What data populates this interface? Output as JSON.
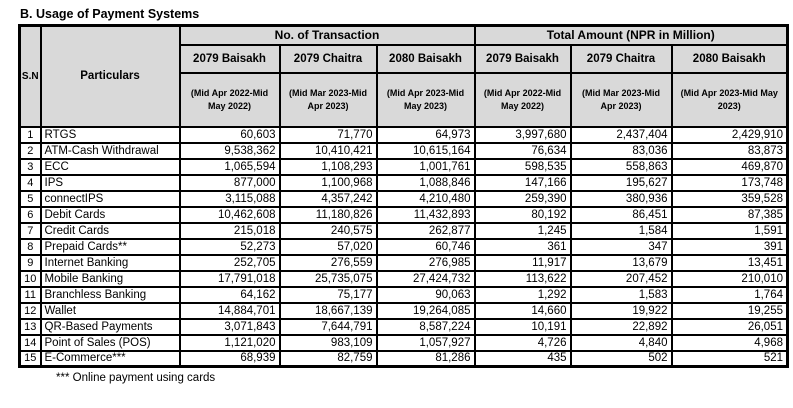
{
  "title": "B. Usage of Payment Systems",
  "footnote": "*** Online payment using cards",
  "colors": {
    "header_bg": "#d9d9d9",
    "border": "#000000",
    "text": "#000000",
    "page_bg": "#ffffff"
  },
  "table": {
    "sn_header": "S.N",
    "particulars_header": "Particulars",
    "group_headers": [
      "No. of Transaction",
      "Total Amount (NPR in Million)"
    ],
    "period_headers": [
      "2079 Baisakh",
      "2079 Chaitra",
      "2080 Baisakh",
      "2079 Baisakh",
      "2079 Chaitra",
      "2080 Baisakh"
    ],
    "date_range_headers": [
      "(Mid Apr 2022-Mid May 2022)",
      "(Mid Mar 2023-Mid Apr 2023)",
      "(Mid Apr 2023-Mid May 2023)",
      "(Mid Apr 2022-Mid May 2022)",
      "(Mid Mar 2023-Mid Apr 2023)",
      "(Mid Apr 2023-Mid May 2023)"
    ],
    "rows": [
      {
        "sn": "1",
        "particulars": "RTGS",
        "values": [
          "60,603",
          "71,770",
          "64,973",
          "3,997,680",
          "2,437,404",
          "2,429,910"
        ]
      },
      {
        "sn": "2",
        "particulars": "ATM-Cash Withdrawal",
        "values": [
          "9,538,362",
          "10,410,421",
          "10,615,164",
          "76,634",
          "83,036",
          "83,873"
        ]
      },
      {
        "sn": "3",
        "particulars": "ECC",
        "values": [
          "1,065,594",
          "1,108,293",
          "1,001,761",
          "598,535",
          "558,863",
          "469,870"
        ]
      },
      {
        "sn": "4",
        "particulars": "IPS",
        "values": [
          "877,000",
          "1,100,968",
          "1,088,846",
          "147,166",
          "195,627",
          "173,748"
        ]
      },
      {
        "sn": "5",
        "particulars": "connectIPS",
        "values": [
          "3,115,088",
          "4,357,242",
          "4,210,480",
          "259,390",
          "380,936",
          "359,528"
        ]
      },
      {
        "sn": "6",
        "particulars": "Debit Cards",
        "values": [
          "10,462,608",
          "11,180,826",
          "11,432,893",
          "80,192",
          "86,451",
          "87,385"
        ]
      },
      {
        "sn": "7",
        "particulars": "Credit Cards",
        "values": [
          "215,018",
          "240,575",
          "262,877",
          "1,245",
          "1,584",
          "1,591"
        ]
      },
      {
        "sn": "8",
        "particulars": "Prepaid Cards**",
        "values": [
          "52,273",
          "57,020",
          "60,746",
          "361",
          "347",
          "391"
        ]
      },
      {
        "sn": "9",
        "particulars": "Internet Banking",
        "values": [
          "252,705",
          "276,559",
          "276,985",
          "11,917",
          "13,679",
          "13,451"
        ]
      },
      {
        "sn": "10",
        "particulars": "Mobile Banking",
        "values": [
          "17,791,018",
          "25,735,075",
          "27,424,732",
          "113,622",
          "207,452",
          "210,010"
        ]
      },
      {
        "sn": "11",
        "particulars": "Branchless Banking",
        "values": [
          "64,162",
          "75,177",
          "90,063",
          "1,292",
          "1,583",
          "1,764"
        ]
      },
      {
        "sn": "12",
        "particulars": "Wallet",
        "values": [
          "14,884,701",
          "18,667,139",
          "19,264,085",
          "14,660",
          "19,922",
          "19,255"
        ]
      },
      {
        "sn": "13",
        "particulars": "QR-Based Payments",
        "values": [
          "3,071,843",
          "7,644,791",
          "8,587,224",
          "10,191",
          "22,892",
          "26,051"
        ]
      },
      {
        "sn": "14",
        "particulars": "Point of Sales (POS)",
        "values": [
          "1,121,020",
          "983,109",
          "1,057,927",
          "4,726",
          "4,840",
          "4,968"
        ]
      },
      {
        "sn": "15",
        "particulars": "E-Commerce***",
        "values": [
          "68,939",
          "82,759",
          "81,286",
          "435",
          "502",
          "521"
        ]
      }
    ]
  }
}
